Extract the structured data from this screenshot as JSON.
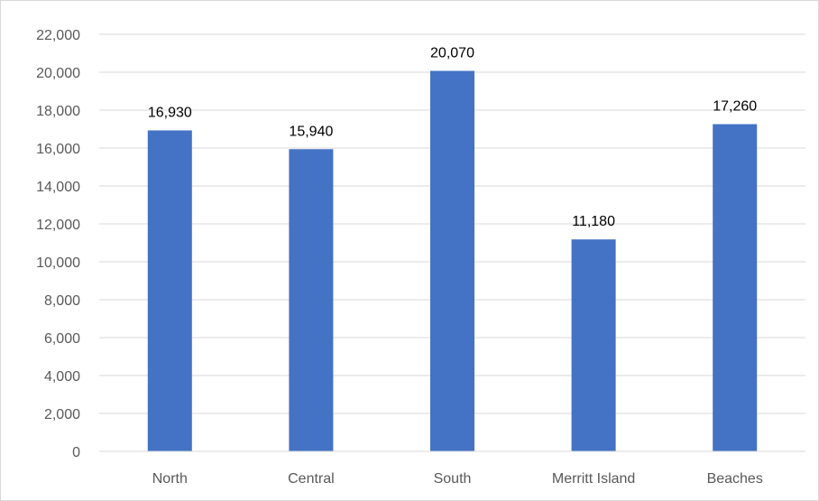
{
  "chart_data": {
    "type": "bar",
    "categories": [
      "North",
      "Central",
      "South",
      "Merritt Island",
      "Beaches"
    ],
    "values": [
      16930,
      15940,
      20070,
      11180,
      17260
    ],
    "data_labels": [
      "16,930",
      "15,940",
      "20,070",
      "11,180",
      "17,260"
    ],
    "title": "",
    "xlabel": "",
    "ylabel": "",
    "ylim": [
      0,
      22000
    ],
    "yticks": [
      0,
      2000,
      4000,
      6000,
      8000,
      10000,
      12000,
      14000,
      16000,
      18000,
      20000,
      22000
    ],
    "ytick_labels": [
      "0",
      "2,000",
      "4,000",
      "6,000",
      "8,000",
      "10,000",
      "12,000",
      "14,000",
      "16,000",
      "18,000",
      "20,000",
      "22,000"
    ],
    "grid": true,
    "legend": "none",
    "bar_color": "#4472C4",
    "grid_color": "#D9D9D9",
    "axis_color": "#D9D9D9",
    "tick_label_color": "#595959",
    "data_label_color": "#000000"
  }
}
